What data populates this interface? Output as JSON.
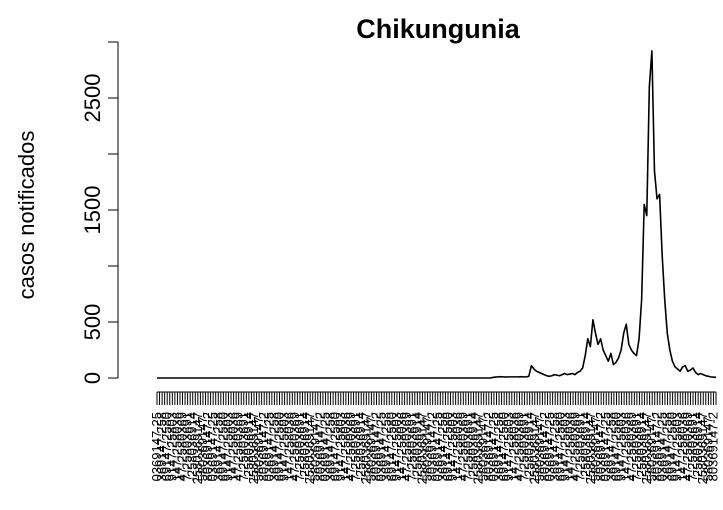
{
  "chart_data": {
    "type": "line",
    "title": "Chikungunia",
    "xlabel": "",
    "ylabel": "casos notificados",
    "ylim": [
      0,
      3000
    ],
    "yticks": [
      0,
      500,
      1500,
      2500
    ],
    "x_tick_count": 220,
    "x_tick_labels_legible": false,
    "grid": false,
    "legend": "none",
    "series": [
      {
        "values": [
          0,
          0,
          0,
          0,
          0,
          0,
          0,
          0,
          0,
          0,
          0,
          0,
          0,
          0,
          0,
          0,
          0,
          0,
          0,
          0,
          0,
          0,
          0,
          0,
          0,
          0,
          0,
          0,
          0,
          0,
          0,
          0,
          0,
          0,
          0,
          0,
          0,
          0,
          0,
          0,
          0,
          0,
          0,
          0,
          0,
          0,
          0,
          0,
          0,
          0,
          0,
          0,
          0,
          0,
          0,
          0,
          0,
          0,
          0,
          0,
          0,
          0,
          0,
          0,
          0,
          0,
          0,
          0,
          0,
          0,
          0,
          0,
          0,
          0,
          0,
          0,
          0,
          0,
          0,
          0,
          0,
          0,
          0,
          0,
          0,
          0,
          0,
          0,
          0,
          0,
          0,
          0,
          0,
          0,
          0,
          0,
          0,
          0,
          0,
          0,
          0,
          0,
          0,
          0,
          0,
          0,
          0,
          0,
          0,
          0,
          0,
          0,
          0,
          0,
          0,
          0,
          0,
          0,
          0,
          0,
          0,
          0,
          0,
          0,
          0,
          0,
          0,
          0,
          0,
          0,
          0,
          5,
          8,
          10,
          12,
          10,
          8,
          10,
          10,
          10,
          10,
          10,
          12,
          10,
          10,
          15,
          110,
          80,
          60,
          50,
          40,
          30,
          20,
          15,
          20,
          30,
          25,
          20,
          30,
          40,
          30,
          35,
          40,
          30,
          50,
          60,
          90,
          200,
          350,
          280,
          520,
          400,
          300,
          350,
          250,
          200,
          150,
          220,
          120,
          140,
          180,
          250,
          400,
          480,
          300,
          250,
          220,
          200,
          350,
          700,
          1550,
          1450,
          2600,
          2920,
          1850,
          1600,
          1640,
          1100,
          700,
          400,
          250,
          150,
          100,
          80,
          60,
          100,
          110,
          60,
          70,
          90,
          50,
          30,
          40,
          30,
          20,
          15,
          10,
          8,
          5
        ]
      }
    ]
  }
}
